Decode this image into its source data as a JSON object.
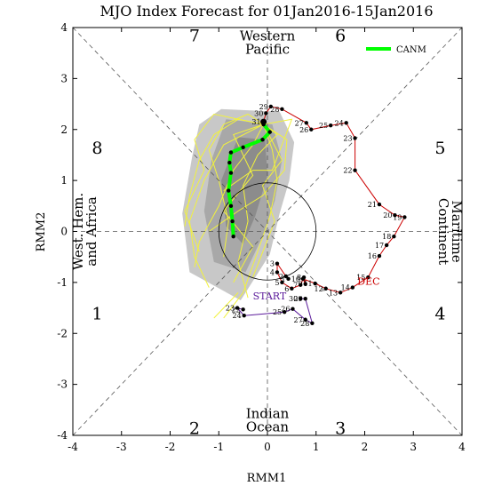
{
  "chart_data": {
    "type": "scatter",
    "title": "MJO Index Forecast for 01Jan2016-15Jan2016",
    "xlabel": "RMM1",
    "ylabel": "RMM2",
    "xlim": [
      -4,
      4
    ],
    "ylim": [
      -4,
      4
    ],
    "xticks": [
      "-4",
      "-3",
      "-2",
      "-1",
      "0",
      "1",
      "2",
      "3",
      "4"
    ],
    "yticks": [
      "-4",
      "-3",
      "-2",
      "-1",
      "0",
      "1",
      "2",
      "3",
      "4"
    ],
    "unit_circle_radius": 1,
    "phases": [
      {
        "label": "1",
        "x": -3.5,
        "y": -1.6
      },
      {
        "label": "2",
        "x": -1.5,
        "y": -3.85
      },
      {
        "label": "3",
        "x": 1.5,
        "y": -3.85
      },
      {
        "label": "4",
        "x": 3.55,
        "y": -1.6
      },
      {
        "label": "5",
        "x": 3.55,
        "y": 1.65
      },
      {
        "label": "6",
        "x": 1.5,
        "y": 3.85
      },
      {
        "label": "7",
        "x": -1.5,
        "y": 3.85
      },
      {
        "label": "8",
        "x": -3.5,
        "y": 1.65
      }
    ],
    "regions": [
      {
        "lines": [
          "Western",
          "Pacific"
        ],
        "x": 0,
        "y": 3.7,
        "rotate": 0
      },
      {
        "lines": [
          "Indian",
          "Ocean"
        ],
        "x": 0,
        "y": -3.7,
        "rotate": 0
      },
      {
        "lines": [
          "Maritime",
          "Continent"
        ],
        "x": 3.75,
        "y": 0,
        "rotate": 90
      },
      {
        "lines": [
          "West. Hem.",
          "and Africa"
        ],
        "x": -3.75,
        "y": 0,
        "rotate": -90
      }
    ],
    "legend": {
      "label": "CANM",
      "color": "#00ff00",
      "position": "top-right"
    },
    "annotations": [
      {
        "text": "DEC",
        "x": 1.85,
        "y": -1.05,
        "color": "#cc0000"
      },
      {
        "text": "START",
        "x": -0.3,
        "y": -1.33,
        "color": "#5a1a9a"
      }
    ],
    "series": [
      {
        "name": "DEC",
        "color": "#cc0000",
        "points": [
          {
            "d": "1",
            "x": 0.43,
            "y": -0.93
          },
          {
            "d": "2",
            "x": 0.38,
            "y": -0.88
          },
          {
            "d": "3",
            "x": 0.2,
            "y": -0.63
          },
          {
            "d": "4",
            "x": 0.2,
            "y": -0.8
          },
          {
            "d": "5",
            "x": 0.3,
            "y": -1.0
          },
          {
            "d": "6",
            "x": 0.5,
            "y": -1.12
          },
          {
            "d": "7",
            "x": 0.68,
            "y": -1.05
          },
          {
            "d": "8",
            "x": 0.75,
            "y": -0.9
          },
          {
            "d": "9",
            "x": 0.78,
            "y": -1.03
          },
          {
            "d": "10",
            "x": 0.73,
            "y": -0.93
          },
          {
            "d": "11",
            "x": 0.98,
            "y": -1.02
          },
          {
            "d": "12",
            "x": 1.2,
            "y": -1.12
          },
          {
            "d": "13",
            "x": 1.5,
            "y": -1.2
          },
          {
            "d": "14",
            "x": 1.75,
            "y": -1.1
          },
          {
            "d": "15",
            "x": 2.07,
            "y": -0.9
          },
          {
            "d": "16",
            "x": 2.3,
            "y": -0.48
          },
          {
            "d": "17",
            "x": 2.45,
            "y": -0.27
          },
          {
            "d": "18",
            "x": 2.6,
            "y": -0.1
          },
          {
            "d": "19",
            "x": 2.82,
            "y": 0.28
          },
          {
            "d": "20",
            "x": 2.62,
            "y": 0.32
          },
          {
            "d": "21",
            "x": 2.3,
            "y": 0.53
          },
          {
            "d": "22",
            "x": 1.8,
            "y": 1.2
          },
          {
            "d": "23",
            "x": 1.8,
            "y": 1.83
          },
          {
            "d": "24",
            "x": 1.62,
            "y": 2.13
          },
          {
            "d": "25",
            "x": 1.3,
            "y": 2.08
          },
          {
            "d": "26",
            "x": 0.9,
            "y": 2.0
          },
          {
            "d": "27",
            "x": 0.8,
            "y": 2.13
          },
          {
            "d": "28",
            "x": 0.3,
            "y": 2.4
          },
          {
            "d": "29",
            "x": 0.07,
            "y": 2.45
          },
          {
            "d": "30",
            "x": -0.03,
            "y": 2.32
          },
          {
            "d": "31",
            "x": -0.08,
            "y": 2.15
          }
        ]
      },
      {
        "name": "START",
        "color": "#5a1a9a",
        "points": [
          {
            "d": "22",
            "x": -0.5,
            "y": -1.53
          },
          {
            "d": "23",
            "x": -0.62,
            "y": -1.5
          },
          {
            "d": "24",
            "x": -0.48,
            "y": -1.65
          },
          {
            "d": "25",
            "x": 0.35,
            "y": -1.58
          },
          {
            "d": "26",
            "x": 0.52,
            "y": -1.52
          },
          {
            "d": "27",
            "x": 0.78,
            "y": -1.73
          },
          {
            "d": "28",
            "x": 0.92,
            "y": -1.8
          },
          {
            "d": "29",
            "x": 0.78,
            "y": -1.32
          },
          {
            "d": "30",
            "x": 0.68,
            "y": -1.32
          }
        ]
      },
      {
        "name": "CANM",
        "color": "#00ff00",
        "points": [
          {
            "x": -0.08,
            "y": 2.1
          },
          {
            "x": 0.05,
            "y": 1.95
          },
          {
            "x": -0.1,
            "y": 1.8
          },
          {
            "x": -0.5,
            "y": 1.65
          },
          {
            "x": -0.75,
            "y": 1.55
          },
          {
            "x": -0.78,
            "y": 1.35
          },
          {
            "x": -0.75,
            "y": 1.15
          },
          {
            "x": -0.8,
            "y": 0.8
          },
          {
            "x": -0.75,
            "y": 0.5
          },
          {
            "x": -0.72,
            "y": 0.2
          },
          {
            "x": -0.7,
            "y": -0.1
          }
        ]
      }
    ],
    "spread": {
      "outer": [
        {
          "x": -0.95,
          "y": 2.4
        },
        {
          "x": 0.25,
          "y": 2.35
        },
        {
          "x": 0.55,
          "y": 1.75
        },
        {
          "x": 0.45,
          "y": 1.0
        },
        {
          "x": 0.25,
          "y": 0.35
        },
        {
          "x": 0.05,
          "y": -0.45
        },
        {
          "x": -0.55,
          "y": -1.35
        },
        {
          "x": -1.6,
          "y": -0.8
        },
        {
          "x": -1.75,
          "y": 0.35
        },
        {
          "x": -1.55,
          "y": 1.45
        },
        {
          "x": -1.4,
          "y": 2.1
        }
      ],
      "inner": [
        {
          "x": -0.85,
          "y": 2.2
        },
        {
          "x": 0.1,
          "y": 2.1
        },
        {
          "x": 0.3,
          "y": 1.4
        },
        {
          "x": 0.15,
          "y": 0.6
        },
        {
          "x": -0.1,
          "y": -0.1
        },
        {
          "x": -0.45,
          "y": -0.8
        },
        {
          "x": -1.1,
          "y": -0.6
        },
        {
          "x": -1.3,
          "y": 0.4
        },
        {
          "x": -1.15,
          "y": 1.4
        }
      ],
      "core": [
        {
          "x": -0.6,
          "y": 1.85
        },
        {
          "x": -0.05,
          "y": 1.8
        },
        {
          "x": 0.0,
          "y": 1.1
        },
        {
          "x": -0.25,
          "y": 0.3
        },
        {
          "x": -0.5,
          "y": -0.25
        },
        {
          "x": -0.85,
          "y": 0.1
        },
        {
          "x": -0.95,
          "y": 1.0
        }
      ],
      "members": [
        [
          {
            "x": -0.08,
            "y": 2.1
          },
          {
            "x": -0.3,
            "y": 1.7
          },
          {
            "x": -0.7,
            "y": 1.2
          },
          {
            "x": -1.0,
            "y": 0.5
          },
          {
            "x": -1.4,
            "y": -0.2
          },
          {
            "x": -1.5,
            "y": -0.7
          }
        ],
        [
          {
            "x": -0.08,
            "y": 2.1
          },
          {
            "x": 0.1,
            "y": 1.6
          },
          {
            "x": 0.2,
            "y": 1.0
          },
          {
            "x": 0.05,
            "y": 0.3
          },
          {
            "x": -0.2,
            "y": -0.4
          },
          {
            "x": -0.5,
            "y": -1.2
          },
          {
            "x": -0.9,
            "y": -1.7
          }
        ],
        [
          {
            "x": -0.08,
            "y": 2.1
          },
          {
            "x": -0.6,
            "y": 2.2
          },
          {
            "x": -1.1,
            "y": 1.9
          },
          {
            "x": -1.4,
            "y": 1.4
          },
          {
            "x": -1.6,
            "y": 0.7
          },
          {
            "x": -1.7,
            "y": 0.1
          }
        ],
        [
          {
            "x": -0.08,
            "y": 2.1
          },
          {
            "x": 0.4,
            "y": 1.8
          },
          {
            "x": 0.35,
            "y": 1.2
          },
          {
            "x": -0.1,
            "y": 0.7
          },
          {
            "x": -0.6,
            "y": 0.4
          },
          {
            "x": -1.2,
            "y": 0.0
          }
        ],
        [
          {
            "x": -0.08,
            "y": 2.1
          },
          {
            "x": -0.4,
            "y": 2.3
          },
          {
            "x": -0.9,
            "y": 2.1
          },
          {
            "x": -1.2,
            "y": 1.6
          },
          {
            "x": -1.0,
            "y": 1.0
          },
          {
            "x": -0.8,
            "y": 0.2
          },
          {
            "x": -0.9,
            "y": -0.5
          }
        ],
        [
          {
            "x": -0.08,
            "y": 2.1
          },
          {
            "x": 0.2,
            "y": 1.9
          },
          {
            "x": -0.2,
            "y": 1.5
          },
          {
            "x": -0.5,
            "y": 0.9
          },
          {
            "x": -0.4,
            "y": 0.2
          },
          {
            "x": -0.6,
            "y": -0.6
          },
          {
            "x": -0.4,
            "y": -1.3
          }
        ],
        [
          {
            "x": -0.08,
            "y": 2.1
          },
          {
            "x": -0.9,
            "y": 1.7
          },
          {
            "x": -1.3,
            "y": 1.0
          },
          {
            "x": -1.6,
            "y": 0.2
          },
          {
            "x": -1.5,
            "y": -0.5
          },
          {
            "x": -1.2,
            "y": -1.1
          }
        ],
        [
          {
            "x": -0.08,
            "y": 2.1
          },
          {
            "x": 0.5,
            "y": 2.2
          },
          {
            "x": 0.3,
            "y": 1.7
          },
          {
            "x": 0.1,
            "y": 1.2
          },
          {
            "x": -0.3,
            "y": 1.2
          },
          {
            "x": -0.9,
            "y": 0.8
          }
        ],
        [
          {
            "x": -0.08,
            "y": 2.1
          },
          {
            "x": -0.7,
            "y": 1.9
          },
          {
            "x": -0.3,
            "y": 1.1
          },
          {
            "x": -0.9,
            "y": 0.4
          },
          {
            "x": -0.3,
            "y": -0.3
          },
          {
            "x": -0.7,
            "y": -1.0
          }
        ],
        [
          {
            "x": -0.08,
            "y": 2.1
          },
          {
            "x": -1.1,
            "y": 2.3
          },
          {
            "x": -1.5,
            "y": 1.8
          },
          {
            "x": -1.3,
            "y": 1.2
          },
          {
            "x": -1.7,
            "y": 0.4
          },
          {
            "x": -1.4,
            "y": -0.4
          }
        ],
        [
          {
            "x": -0.08,
            "y": 2.1
          },
          {
            "x": 0.3,
            "y": 1.4
          },
          {
            "x": -0.1,
            "y": 0.9
          },
          {
            "x": 0.15,
            "y": 0.2
          },
          {
            "x": -0.3,
            "y": -0.9
          }
        ],
        [
          {
            "x": -0.6,
            "y": -1.2
          },
          {
            "x": -0.9,
            "y": -1.5
          },
          {
            "x": -1.1,
            "y": -1.7
          }
        ]
      ]
    }
  }
}
